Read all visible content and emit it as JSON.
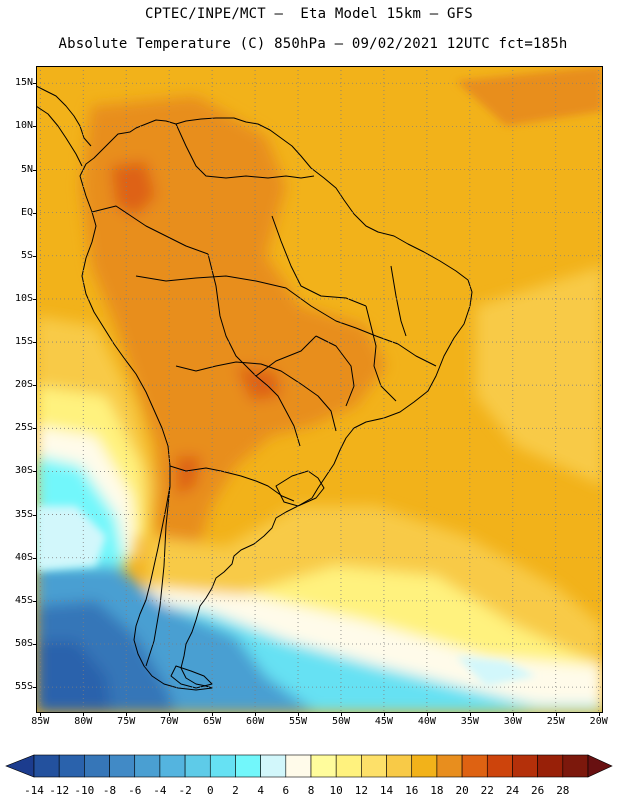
{
  "header": {
    "line1": "CPTEC/INPE/MCT –  Eta Model 15km – GFS",
    "line2": "Absolute Temperature (C) 850hPa – 09/02/2021 12UTC fct=185h"
  },
  "chart_data": {
    "type": "heatmap",
    "title": "Absolute Temperature (C) 850hPa – 09/02/2021 12UTC fct=185h",
    "subtitle": "CPTEC/INPE/MCT –  Eta Model 15km – GFS",
    "variable": "Absolute Temperature (C) 850hPa",
    "x_range": [
      -85.5,
      -19.5
    ],
    "y_range": [
      -58,
      17
    ],
    "x_ticks": [
      -85,
      -80,
      -75,
      -70,
      -65,
      -60,
      -55,
      -50,
      -45,
      -40,
      -35,
      -30,
      -25,
      -20
    ],
    "x_tick_labels": [
      "85W",
      "80W",
      "75W",
      "70W",
      "65W",
      "60W",
      "55W",
      "50W",
      "45W",
      "40W",
      "35W",
      "30W",
      "25W",
      "20W"
    ],
    "y_ticks": [
      15,
      10,
      5,
      0,
      -5,
      -10,
      -15,
      -20,
      -25,
      -30,
      -35,
      -40,
      -45,
      -50,
      -55
    ],
    "y_tick_labels": [
      "15N",
      "10N",
      "5N",
      "EQ",
      "5S",
      "10S",
      "15S",
      "20S",
      "25S",
      "30S",
      "35S",
      "40S",
      "45S",
      "50S",
      "55S"
    ],
    "grid": true,
    "colorbar": {
      "labels": [
        "-14",
        "-12",
        "-10",
        "-8",
        "-6",
        "-4",
        "-2",
        "0",
        "2",
        "4",
        "6",
        "8",
        "10",
        "12",
        "14",
        "16",
        "18",
        "20",
        "22",
        "24",
        "26",
        "28"
      ],
      "colors": [
        "#1c3c8e",
        "#23519e",
        "#2a62ac",
        "#3676b8",
        "#418ac6",
        "#4a9fd2",
        "#54b4df",
        "#5ecbe8",
        "#66e1f3",
        "#72f7fb",
        "#d2f7fb",
        "#fffbea",
        "#fffc9c",
        "#fff27e",
        "#fde069",
        "#f8ca47",
        "#f2b21a",
        "#e88e1e",
        "#de6212",
        "#cd440c",
        "#b4300a",
        "#982008",
        "#7c180c",
        "#681011"
      ],
      "position": "bottom"
    }
  }
}
